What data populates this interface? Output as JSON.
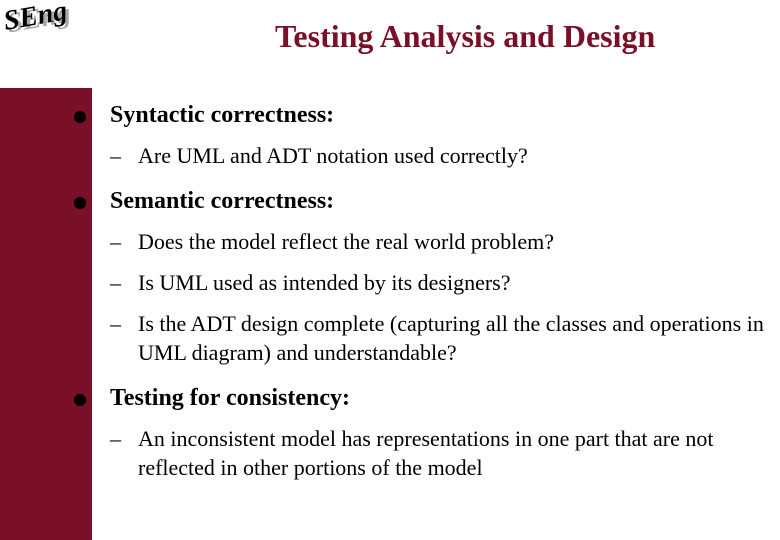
{
  "logo_text": "SEng",
  "title": "Testing Analysis and Design",
  "title_color": "#7a0f28",
  "sidebar_color": "#7a0f28",
  "sections": {
    "s0": {
      "heading": "Syntactic correctness:"
    },
    "s0i0": "Are UML and ADT notation used correctly?",
    "s1": {
      "heading": "Semantic correctness:"
    },
    "s1i0": "Does the model reflect the real world problem?",
    "s1i1": "Is UML used as intended by its designers?",
    "s1i2": "Is the ADT design complete (capturing all the classes and operations in UML diagram) and understandable?",
    "s2": {
      "heading": "Testing for consistency:"
    },
    "s2i0": "An inconsistent model has representations in one part that are not reflected in other portions of the model"
  }
}
